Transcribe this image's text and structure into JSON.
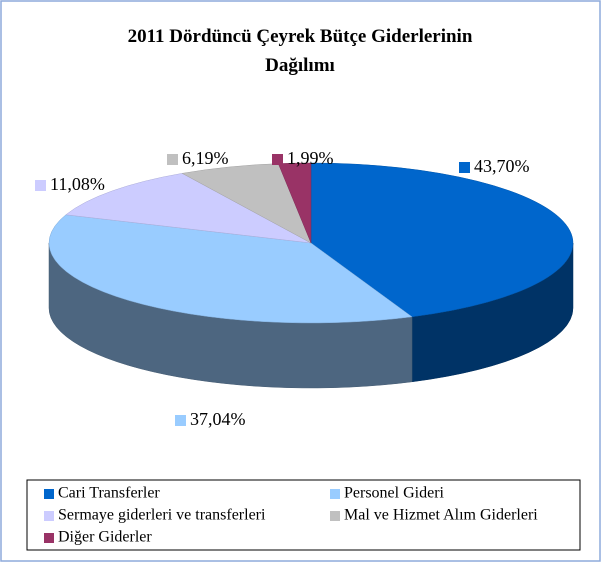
{
  "chart_data": {
    "type": "pie",
    "title": "2011 Dördüncü Çeyrek Bütçe Giderlerinin Dağılımı",
    "categories": [
      "Cari Transferler",
      "Personel Gideri",
      "Sermaye giderleri ve transferleri",
      "Mal ve Hizmet Alım Giderleri",
      "Diğer Giderler"
    ],
    "values": [
      43.7,
      37.04,
      11.08,
      6.19,
      1.99
    ],
    "value_labels": [
      "43,70%",
      "37,04%",
      "11,08%",
      "6,19%",
      "1,99%"
    ],
    "colors": [
      "#0066cc",
      "#99ccff",
      "#ccccff",
      "#c0c0c0",
      "#993366"
    ],
    "legend": "bottom"
  }
}
